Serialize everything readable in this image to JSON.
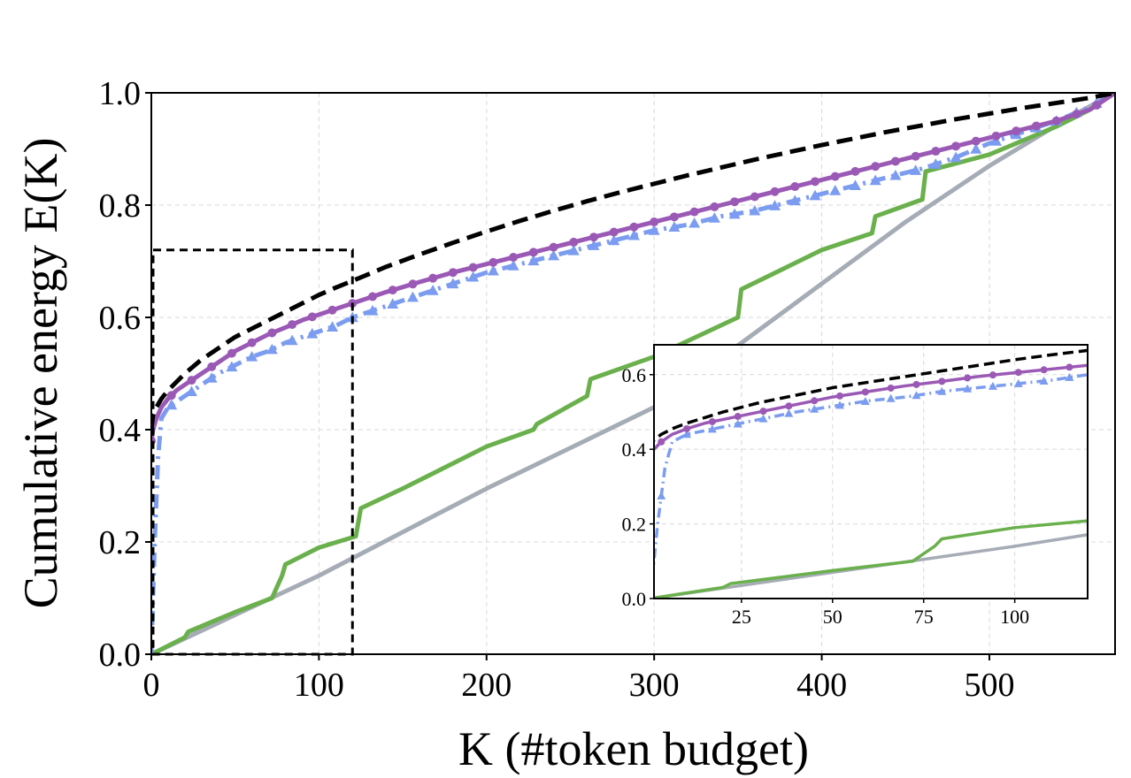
{
  "chart_data": {
    "type": "line",
    "xlabel": "K (#token budget)",
    "ylabel": "Cumulative energy E(K)",
    "xlim": [
      0,
      575
    ],
    "ylim": [
      0,
      1.0
    ],
    "xticks": [
      0,
      100,
      200,
      300,
      400,
      500
    ],
    "yticks": [
      0.0,
      0.2,
      0.4,
      0.6,
      0.8,
      1.0
    ],
    "grid": true,
    "highlight_region": {
      "x": [
        0,
        120
      ],
      "y": [
        0,
        0.72
      ],
      "style": "dashed"
    },
    "colors": {
      "black": "#000000",
      "purple": "#9b59b6",
      "blue": "#7b9cf0",
      "green": "#6ab04c",
      "gray": "#a6acb6"
    },
    "series": [
      {
        "color": "#000000",
        "style": "dashed",
        "marker": "none",
        "x": [
          0,
          1,
          3,
          6,
          10,
          15,
          20,
          30,
          40,
          50,
          60,
          70,
          80,
          90,
          100,
          110,
          120,
          140,
          160,
          180,
          200,
          220,
          240,
          260,
          280,
          300,
          320,
          340,
          360,
          380,
          400,
          420,
          440,
          460,
          480,
          500,
          520,
          540,
          560,
          575
        ],
        "y": [
          0.4,
          0.425,
          0.44,
          0.455,
          0.47,
          0.485,
          0.5,
          0.525,
          0.545,
          0.565,
          0.58,
          0.595,
          0.61,
          0.625,
          0.64,
          0.653,
          0.665,
          0.69,
          0.712,
          0.733,
          0.753,
          0.772,
          0.79,
          0.807,
          0.823,
          0.838,
          0.853,
          0.867,
          0.881,
          0.894,
          0.907,
          0.919,
          0.931,
          0.942,
          0.953,
          0.963,
          0.973,
          0.982,
          0.991,
          1.0
        ]
      },
      {
        "color": "#9b59b6",
        "style": "solid",
        "marker": "circle",
        "x": [
          0,
          1,
          3,
          6,
          10,
          15,
          20,
          30,
          40,
          50,
          60,
          70,
          80,
          90,
          100,
          110,
          120,
          140,
          160,
          180,
          200,
          220,
          240,
          260,
          280,
          300,
          320,
          340,
          360,
          380,
          400,
          420,
          440,
          460,
          480,
          500,
          520,
          540,
          560,
          575
        ],
        "y": [
          0.38,
          0.4,
          0.42,
          0.44,
          0.455,
          0.47,
          0.48,
          0.5,
          0.52,
          0.54,
          0.555,
          0.57,
          0.582,
          0.595,
          0.605,
          0.615,
          0.625,
          0.645,
          0.663,
          0.68,
          0.695,
          0.71,
          0.725,
          0.74,
          0.755,
          0.77,
          0.785,
          0.8,
          0.815,
          0.83,
          0.845,
          0.86,
          0.875,
          0.89,
          0.905,
          0.92,
          0.935,
          0.95,
          0.97,
          1.0
        ]
      },
      {
        "color": "#7b9cf0",
        "style": "dashdot",
        "marker": "triangle",
        "x": [
          0,
          1,
          2,
          4,
          6,
          8,
          10,
          15,
          20,
          30,
          40,
          50,
          60,
          70,
          80,
          90,
          100,
          110,
          120,
          140,
          160,
          180,
          200,
          220,
          240,
          260,
          280,
          300,
          320,
          340,
          360,
          380,
          400,
          420,
          440,
          460,
          480,
          500,
          520,
          540,
          560,
          575
        ],
        "y": [
          0.0,
          0.1,
          0.2,
          0.35,
          0.42,
          0.43,
          0.44,
          0.45,
          0.46,
          0.48,
          0.5,
          0.515,
          0.53,
          0.54,
          0.555,
          0.565,
          0.575,
          0.585,
          0.6,
          0.62,
          0.64,
          0.66,
          0.68,
          0.695,
          0.71,
          0.725,
          0.74,
          0.755,
          0.765,
          0.78,
          0.79,
          0.805,
          0.82,
          0.835,
          0.85,
          0.865,
          0.885,
          0.91,
          0.93,
          0.95,
          0.975,
          1.0
        ]
      },
      {
        "color": "#6ab04c",
        "style": "solid",
        "marker": "none",
        "x": [
          0,
          20,
          22,
          50,
          72,
          75,
          78,
          80,
          100,
          122,
          125,
          150,
          160,
          170,
          180,
          200,
          228,
          230,
          260,
          262,
          300,
          350,
          352,
          400,
          430,
          432,
          460,
          462,
          500,
          540,
          560,
          575
        ],
        "y": [
          0.0,
          0.03,
          0.04,
          0.075,
          0.1,
          0.12,
          0.14,
          0.16,
          0.19,
          0.21,
          0.26,
          0.295,
          0.31,
          0.325,
          0.34,
          0.37,
          0.4,
          0.41,
          0.46,
          0.49,
          0.53,
          0.6,
          0.65,
          0.72,
          0.75,
          0.78,
          0.81,
          0.86,
          0.89,
          0.94,
          0.97,
          1.0
        ]
      },
      {
        "color": "#a6acb6",
        "style": "solid",
        "marker": "none",
        "x": [
          0,
          100,
          200,
          300,
          350,
          400,
          450,
          500,
          550,
          575
        ],
        "y": [
          0.0,
          0.14,
          0.295,
          0.44,
          0.55,
          0.66,
          0.77,
          0.87,
          0.96,
          1.0
        ]
      }
    ],
    "inset": {
      "xlim": [
        1,
        120
      ],
      "ylim": [
        0.0,
        0.68
      ],
      "xticks": [
        25,
        50,
        75,
        100
      ],
      "yticks": [
        0.0,
        0.2,
        0.4,
        0.6
      ],
      "grid": true
    }
  }
}
